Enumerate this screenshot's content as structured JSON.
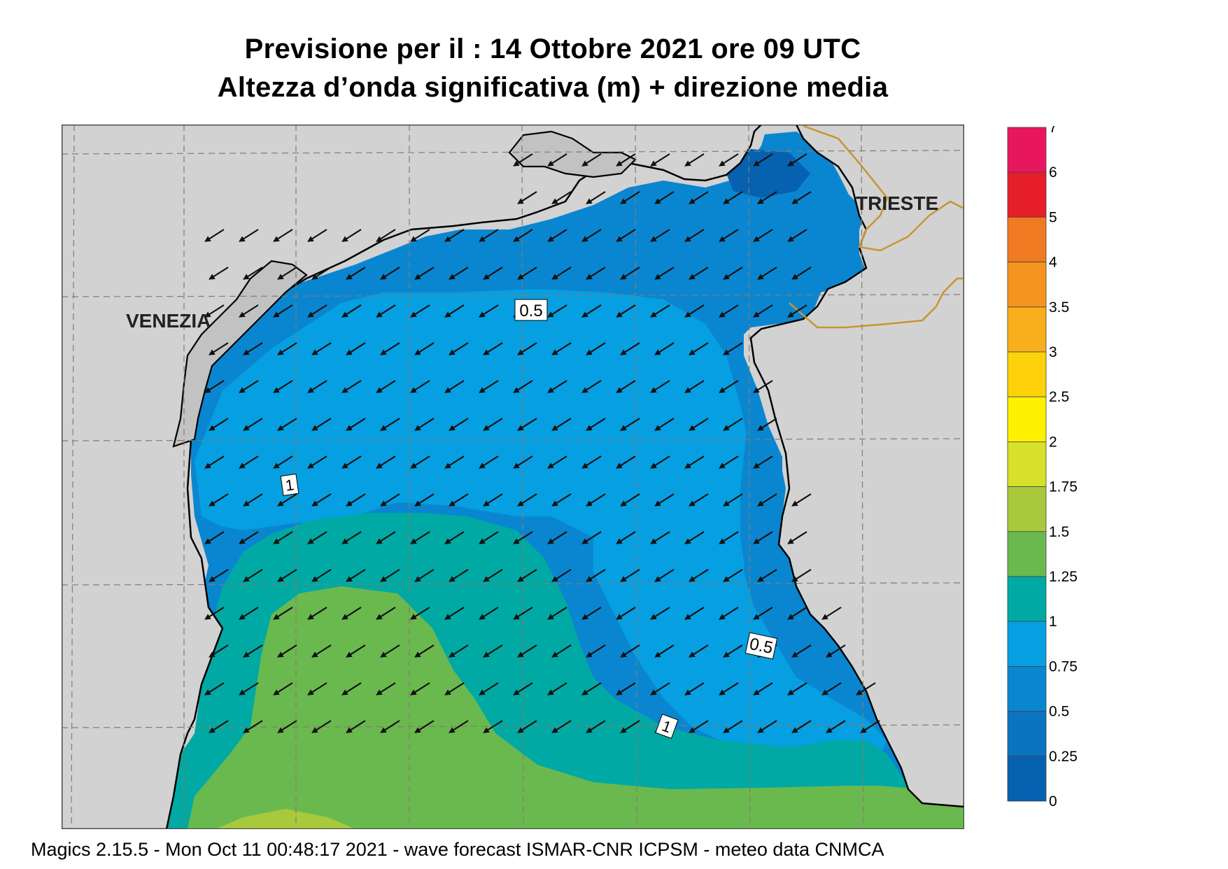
{
  "header": {
    "title_line1": "Previsione per il  :  14  Ottobre  2021   ore 09 UTC",
    "title_line2": "Altezza d’onda significativa (m) + direzione media"
  },
  "map": {
    "place_labels": [
      "VENEZIA",
      "TRIESTE"
    ],
    "contour_labels": [
      "0.5",
      "1",
      "0.5",
      "1"
    ],
    "land_color": "#d2d2d3",
    "border_color": "#c8952e"
  },
  "legend": {
    "items": [
      {
        "label": "7",
        "color": null
      },
      {
        "label": "6",
        "color": "#e8175d"
      },
      {
        "label": "5",
        "color": "#e61e2a"
      },
      {
        "label": "4",
        "color": "#f07a22"
      },
      {
        "label": "3.5",
        "color": "#f5951f"
      },
      {
        "label": "3",
        "color": "#f9ae1b"
      },
      {
        "label": "2.5",
        "color": "#fdd20a"
      },
      {
        "label": "2",
        "color": "#fff200"
      },
      {
        "label": "1.75",
        "color": "#d7e02a"
      },
      {
        "label": "1.5",
        "color": "#a9c93d"
      },
      {
        "label": "1.25",
        "color": "#6ab94f"
      },
      {
        "label": "1",
        "color": "#00a9a3"
      },
      {
        "label": "0.75",
        "color": "#069fe1"
      },
      {
        "label": "0.5",
        "color": "#0a86d0"
      },
      {
        "label": "0.25",
        "color": "#0a74c0"
      },
      {
        "label": "0",
        "color": "#0661b0"
      }
    ]
  },
  "footer": {
    "credit": "Magics 2.15.5 - Mon Oct 11 00:48:17 2021 - wave forecast  ISMAR-CNR  ICPSM - meteo data   CNMCA"
  }
}
